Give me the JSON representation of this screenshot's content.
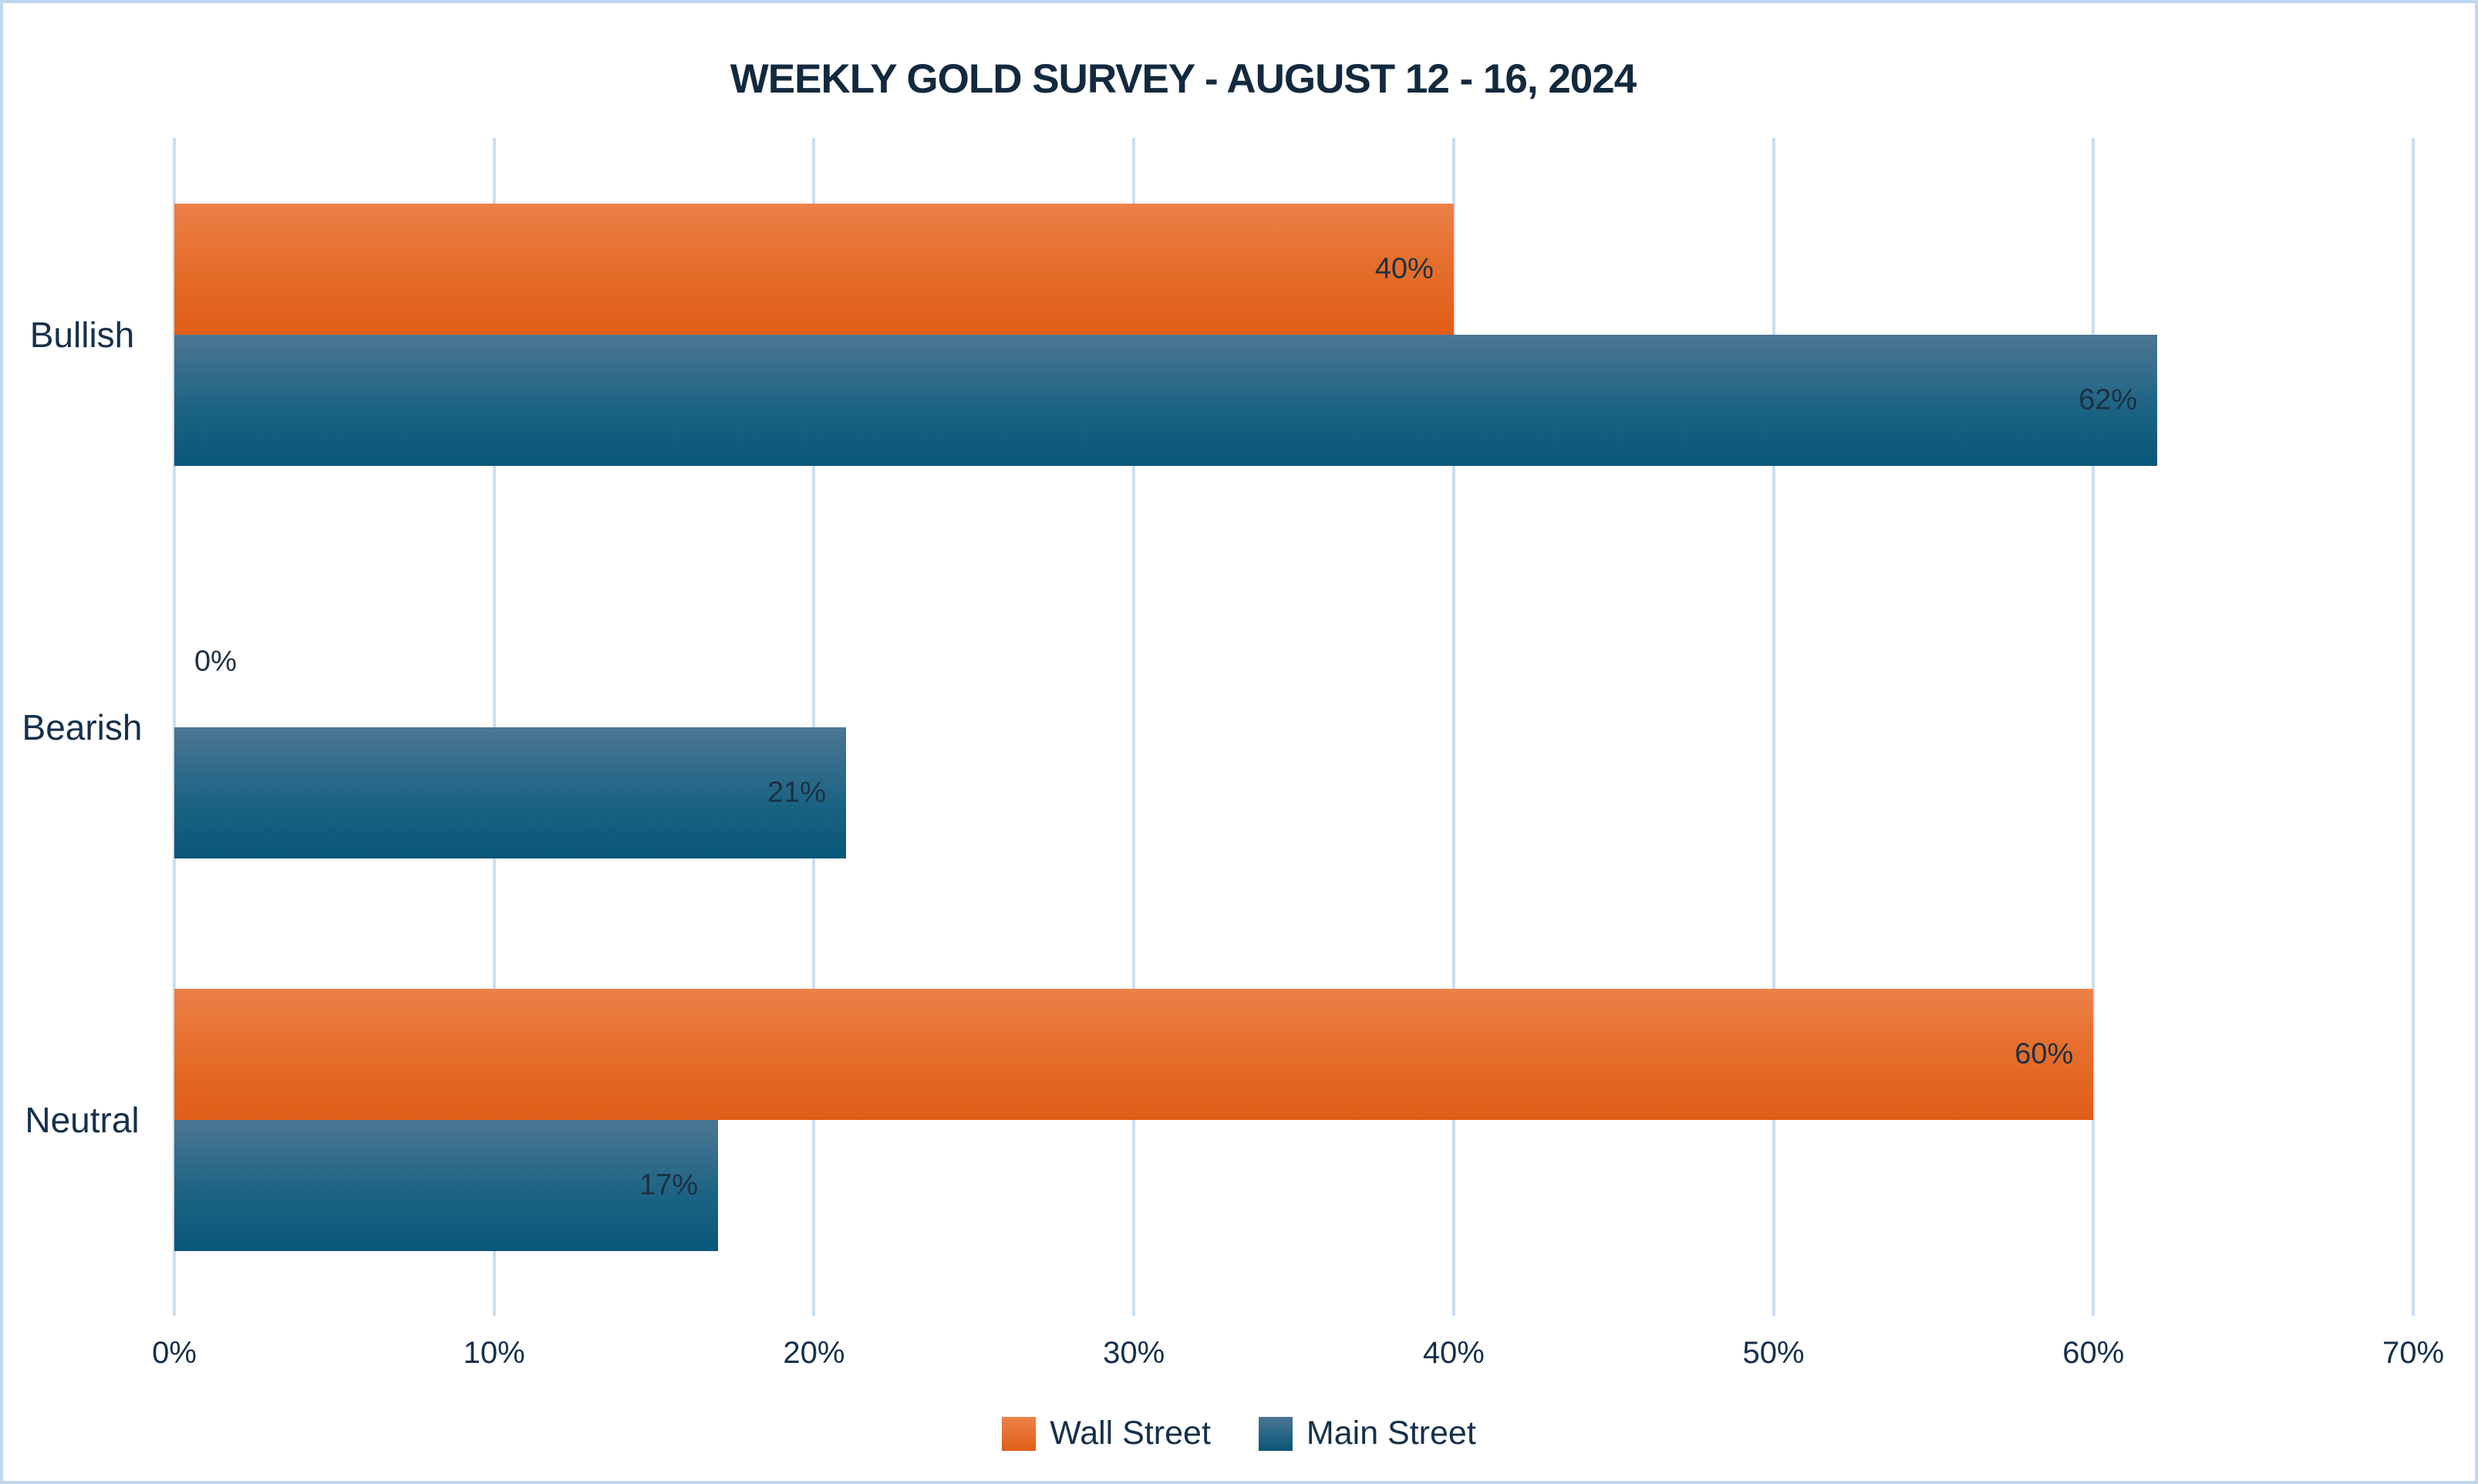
{
  "title": "WEEKLY GOLD SURVEY - AUGUST 12 - 16, 2024",
  "chart_data": {
    "type": "bar",
    "orientation": "horizontal",
    "title": "WEEKLY GOLD SURVEY - AUGUST 12 - 16, 2024",
    "categories": [
      "Bullish",
      "Bearish",
      "Neutral"
    ],
    "series": [
      {
        "name": "Wall Street",
        "values": [
          40,
          0,
          60
        ],
        "labels": [
          "40%",
          "0%",
          "60%"
        ],
        "color_top": "#EC8149",
        "color_bottom": "#DF5E18"
      },
      {
        "name": "Main Street",
        "values": [
          62,
          21,
          17
        ],
        "labels": [
          "62%",
          "21%",
          "17%"
        ],
        "color_top": "#4C7693",
        "color_bottom": "#085678"
      }
    ],
    "xlabel": "",
    "ylabel": "",
    "xlim": [
      0,
      70
    ],
    "x_ticks": [
      0,
      10,
      20,
      30,
      40,
      50,
      60,
      70
    ],
    "x_tick_labels": [
      "0%",
      "10%",
      "20%",
      "30%",
      "40%",
      "50%",
      "60%",
      "70%"
    ],
    "grid": true,
    "gridline_color": "#CBDEF1",
    "legend_position": "bottom",
    "text_color": "#16304A",
    "border_color": "#BFD8EF",
    "background_color": "#FFFFFF"
  }
}
